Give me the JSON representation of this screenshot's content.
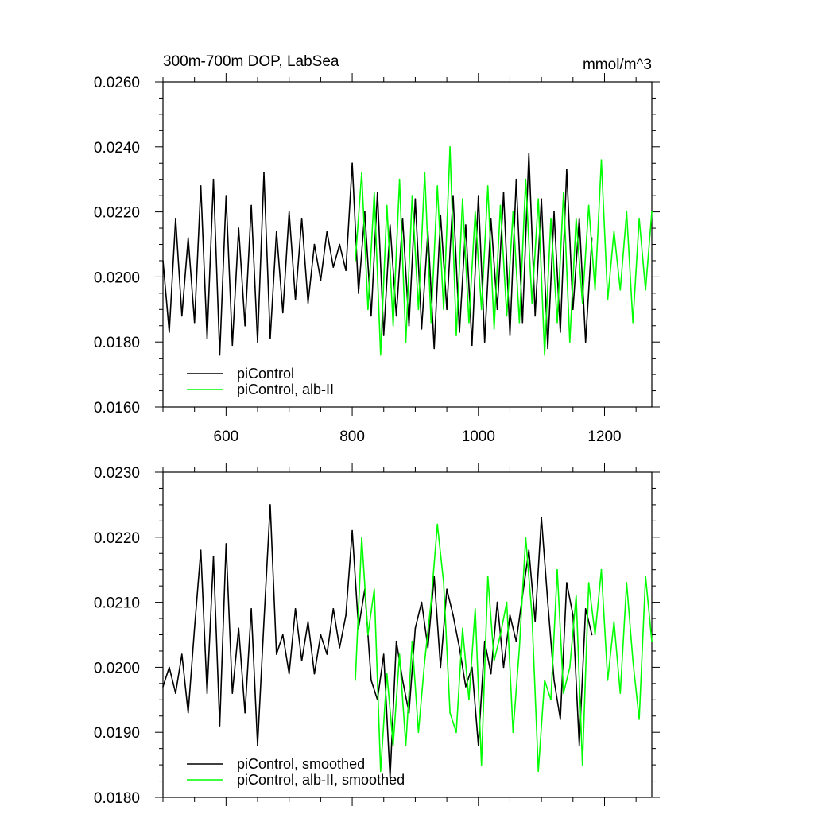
{
  "chart_data": [
    {
      "type": "line",
      "title": "300m-700m DOP, LabSea",
      "units": "mmol/m^3",
      "xlim": [
        500,
        1275
      ],
      "ylim": [
        0.016,
        0.026
      ],
      "xticks": [
        600,
        800,
        1000,
        1200
      ],
      "xtick_labels": [
        "600",
        "800",
        "1000",
        "1200"
      ],
      "yticks": [
        0.016,
        0.018,
        0.02,
        0.022,
        0.024,
        0.026
      ],
      "ytick_labels": [
        "0.0160",
        "0.0180",
        "0.0200",
        "0.0220",
        "0.0240",
        "0.0260"
      ],
      "legend_position": "bottom-left",
      "series": [
        {
          "name": "piControl",
          "color": "#000000",
          "x": [
            500,
            510,
            520,
            530,
            540,
            550,
            560,
            570,
            580,
            590,
            600,
            610,
            620,
            630,
            640,
            650,
            660,
            670,
            680,
            690,
            700,
            710,
            720,
            730,
            740,
            750,
            760,
            770,
            780,
            790,
            800,
            810,
            820,
            830,
            840,
            850,
            860,
            870,
            880,
            890,
            900,
            910,
            920,
            930,
            940,
            950,
            960,
            970,
            980,
            990,
            1000,
            1010,
            1020,
            1030,
            1040,
            1050,
            1060,
            1070,
            1080,
            1090,
            1100,
            1110,
            1120,
            1130,
            1140,
            1150,
            1160,
            1170,
            1180
          ],
          "values": [
            0.0205,
            0.0183,
            0.0218,
            0.0188,
            0.0212,
            0.0186,
            0.0228,
            0.0181,
            0.023,
            0.0176,
            0.0225,
            0.0179,
            0.0215,
            0.0185,
            0.0222,
            0.018,
            0.0232,
            0.0181,
            0.0214,
            0.0189,
            0.022,
            0.0193,
            0.0218,
            0.0192,
            0.021,
            0.0199,
            0.0214,
            0.0203,
            0.021,
            0.0202,
            0.0235,
            0.0195,
            0.022,
            0.0188,
            0.0226,
            0.0182,
            0.0216,
            0.0188,
            0.0218,
            0.0185,
            0.0224,
            0.0184,
            0.0214,
            0.0178,
            0.0219,
            0.019,
            0.0225,
            0.0183,
            0.0216,
            0.0179,
            0.0225,
            0.018,
            0.0218,
            0.019,
            0.0226,
            0.0182,
            0.023,
            0.0186,
            0.0238,
            0.0188,
            0.0224,
            0.0178,
            0.022,
            0.0183,
            0.0233,
            0.019,
            0.0218,
            0.018,
            0.0212
          ]
        },
        {
          "name": "piControl, alb-II",
          "color": "#00ff00",
          "x": [
            805,
            815,
            825,
            835,
            845,
            855,
            865,
            875,
            885,
            895,
            905,
            915,
            925,
            935,
            945,
            955,
            965,
            975,
            985,
            995,
            1005,
            1015,
            1025,
            1035,
            1045,
            1055,
            1065,
            1075,
            1085,
            1095,
            1105,
            1115,
            1125,
            1135,
            1145,
            1155,
            1165,
            1175,
            1185,
            1195,
            1205,
            1215,
            1225,
            1235,
            1245,
            1255,
            1265,
            1275
          ],
          "values": [
            0.0205,
            0.0232,
            0.019,
            0.0226,
            0.0176,
            0.0222,
            0.0185,
            0.023,
            0.018,
            0.0225,
            0.019,
            0.0232,
            0.0186,
            0.0228,
            0.019,
            0.024,
            0.0182,
            0.0224,
            0.0186,
            0.022,
            0.019,
            0.0228,
            0.0184,
            0.0222,
            0.0188,
            0.022,
            0.0186,
            0.023,
            0.0192,
            0.0224,
            0.0176,
            0.0218,
            0.0186,
            0.0226,
            0.018,
            0.0218,
            0.0192,
            0.0222,
            0.0196,
            0.0236,
            0.0193,
            0.0214,
            0.0196,
            0.022,
            0.0186,
            0.0218,
            0.0196,
            0.022
          ]
        }
      ]
    },
    {
      "type": "line",
      "xlim": [
        500,
        1275
      ],
      "ylim": [
        0.018,
        0.023
      ],
      "xticks": [
        600,
        800,
        1000,
        1200
      ],
      "yticks": [
        0.018,
        0.019,
        0.02,
        0.021,
        0.022,
        0.023
      ],
      "ytick_labels": [
        "0.0180",
        "0.0190",
        "0.0200",
        "0.0210",
        "0.0220",
        "0.0230"
      ],
      "legend_position": "bottom-left",
      "series": [
        {
          "name": "piControl, smoothed",
          "color": "#000000",
          "x": [
            500,
            510,
            520,
            530,
            540,
            550,
            560,
            570,
            580,
            590,
            600,
            610,
            620,
            630,
            640,
            650,
            660,
            670,
            680,
            690,
            700,
            710,
            720,
            730,
            740,
            750,
            760,
            770,
            780,
            790,
            800,
            810,
            820,
            830,
            840,
            850,
            860,
            870,
            880,
            890,
            900,
            910,
            920,
            930,
            940,
            950,
            960,
            970,
            980,
            990,
            1000,
            1010,
            1020,
            1030,
            1040,
            1050,
            1060,
            1070,
            1080,
            1090,
            1100,
            1110,
            1120,
            1130,
            1140,
            1150,
            1160,
            1170,
            1180
          ],
          "values": [
            0.0197,
            0.02,
            0.0196,
            0.0202,
            0.0193,
            0.0206,
            0.0218,
            0.0196,
            0.0217,
            0.0191,
            0.0219,
            0.0196,
            0.0206,
            0.0193,
            0.0209,
            0.0188,
            0.0207,
            0.0225,
            0.0202,
            0.0205,
            0.0199,
            0.0209,
            0.0201,
            0.0207,
            0.0199,
            0.0205,
            0.0202,
            0.0209,
            0.0203,
            0.0208,
            0.0221,
            0.0206,
            0.0212,
            0.0198,
            0.0195,
            0.0202,
            0.0183,
            0.0204,
            0.0198,
            0.0193,
            0.0206,
            0.021,
            0.0203,
            0.0214,
            0.02,
            0.0212,
            0.0208,
            0.0203,
            0.0197,
            0.02,
            0.0188,
            0.0204,
            0.0199,
            0.021,
            0.02,
            0.0208,
            0.0204,
            0.0211,
            0.0218,
            0.0207,
            0.0223,
            0.021,
            0.0198,
            0.0192,
            0.0213,
            0.0208,
            0.0188,
            0.0209,
            0.0205
          ]
        },
        {
          "name": "piControl, alb-II, smoothed",
          "color": "#00ff00",
          "x": [
            805,
            815,
            825,
            835,
            845,
            855,
            865,
            875,
            885,
            895,
            905,
            915,
            925,
            935,
            945,
            955,
            965,
            975,
            985,
            995,
            1005,
            1015,
            1025,
            1035,
            1045,
            1055,
            1065,
            1075,
            1085,
            1095,
            1105,
            1115,
            1125,
            1135,
            1145,
            1155,
            1165,
            1175,
            1185,
            1195,
            1205,
            1215,
            1225,
            1235,
            1245,
            1255,
            1265,
            1275
          ],
          "values": [
            0.0198,
            0.022,
            0.0205,
            0.0212,
            0.0184,
            0.0199,
            0.0188,
            0.0202,
            0.0188,
            0.0204,
            0.019,
            0.0201,
            0.021,
            0.0222,
            0.0213,
            0.0193,
            0.019,
            0.0206,
            0.0195,
            0.0209,
            0.0185,
            0.0214,
            0.0201,
            0.0205,
            0.021,
            0.019,
            0.0203,
            0.022,
            0.0208,
            0.0184,
            0.0198,
            0.0195,
            0.0215,
            0.0196,
            0.02,
            0.0211,
            0.0185,
            0.0213,
            0.0205,
            0.0215,
            0.0198,
            0.0207,
            0.0196,
            0.0213,
            0.0201,
            0.0192,
            0.0214,
            0.0204
          ]
        }
      ]
    }
  ]
}
